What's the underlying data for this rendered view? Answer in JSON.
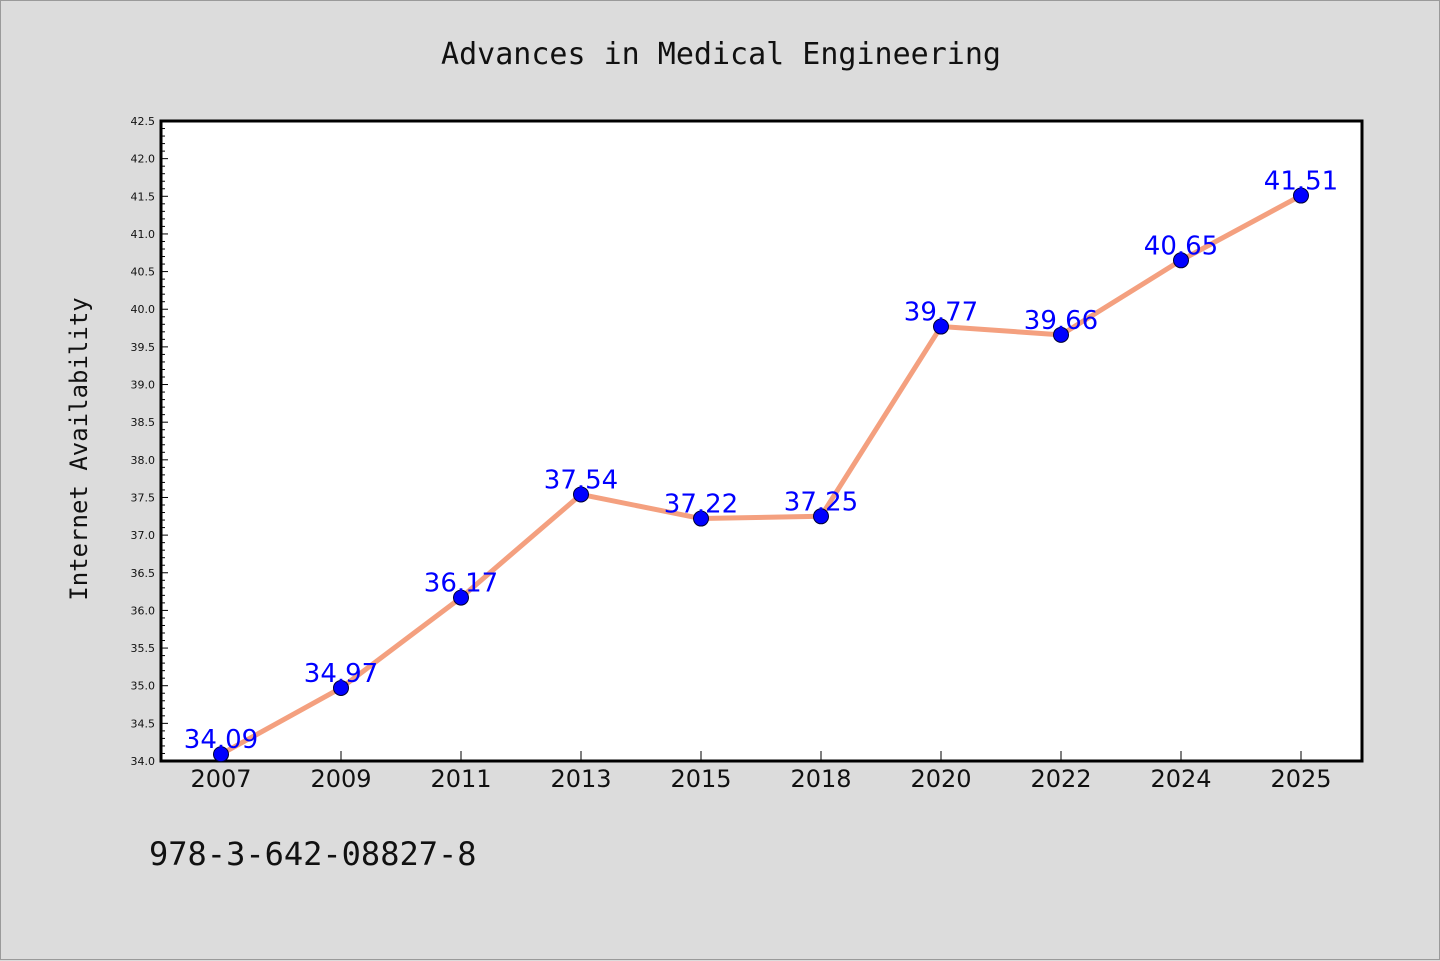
{
  "isbn": "978-3-642-08827-8",
  "colors": {
    "background": "#dcdcdc",
    "plot_background": "#ffffff",
    "line": "#f4a07f",
    "marker": "#0000ff",
    "data_label": "#0000ff"
  },
  "chart_data": {
    "type": "line",
    "title": "Advances in Medical Engineering",
    "xlabel": "",
    "ylabel": "Internet Availability",
    "categories": [
      "2007",
      "2009",
      "2011",
      "2013",
      "2015",
      "2018",
      "2020",
      "2022",
      "2024",
      "2025"
    ],
    "series": [
      {
        "values": [
          34.09,
          34.97,
          36.17,
          37.54,
          37.22,
          37.25,
          39.77,
          39.66,
          40.65,
          41.51
        ],
        "labels": [
          "34.09",
          "34.97",
          "36.17",
          "37.54",
          "37.22",
          "37.25",
          "39.77",
          "39.66",
          "40.65",
          "41.51"
        ]
      }
    ],
    "ylim": [
      34.0,
      42.5
    ],
    "yticks": [
      "34.0",
      "34.5",
      "35.0",
      "35.5",
      "36.0",
      "36.5",
      "37.0",
      "37.5",
      "38.0",
      "38.5",
      "39.0",
      "39.5",
      "40.0",
      "40.5",
      "41.0",
      "41.5",
      "42.0",
      "42.5"
    ],
    "grid": false,
    "legend": "none",
    "marker": "circle"
  }
}
